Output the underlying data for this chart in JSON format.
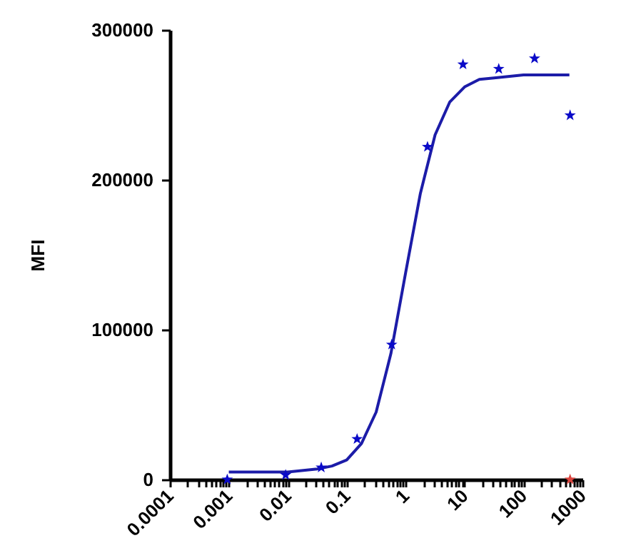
{
  "chart_data": {
    "type": "scatter",
    "ylabel": "MFI",
    "log": "x",
    "grid": false,
    "xlim": [
      0.0001,
      1000
    ],
    "ylim": [
      0,
      300000
    ],
    "yticks": [
      0,
      100000,
      200000,
      300000
    ],
    "xticks": [
      0.0001,
      {
        "value": 0.0002,
        "label": null
      },
      {
        "value": 0.0003,
        "label": null
      },
      {
        "value": 0.0004,
        "label": null
      },
      {
        "value": 0.0005,
        "label": null
      },
      {
        "value": 0.0006,
        "label": null
      },
      {
        "value": 0.0007,
        "label": null
      },
      {
        "value": 0.0008,
        "label": null
      },
      {
        "value": 0.0009,
        "label": null
      },
      0.001,
      {
        "value": 0.002,
        "label": null
      },
      {
        "value": 0.003,
        "label": null
      },
      {
        "value": 0.004,
        "label": null
      },
      {
        "value": 0.005,
        "label": null
      },
      {
        "value": 0.006,
        "label": null
      },
      {
        "value": 0.007,
        "label": null
      },
      {
        "value": 0.008,
        "label": null
      },
      {
        "value": 0.009,
        "label": null
      },
      0.01,
      {
        "value": 0.02,
        "label": null
      },
      {
        "value": 0.03,
        "label": null
      },
      {
        "value": 0.04,
        "label": null
      },
      {
        "value": 0.05,
        "label": null
      },
      {
        "value": 0.06,
        "label": null
      },
      {
        "value": 0.07,
        "label": null
      },
      {
        "value": 0.08,
        "label": null
      },
      {
        "value": 0.09,
        "label": null
      },
      0.1,
      {
        "value": 0.2,
        "label": null
      },
      {
        "value": 0.3,
        "label": null
      },
      {
        "value": 0.4,
        "label": null
      },
      {
        "value": 0.5,
        "label": null
      },
      {
        "value": 0.6,
        "label": null
      },
      {
        "value": 0.7,
        "label": null
      },
      {
        "value": 0.8,
        "label": null
      },
      {
        "value": 0.9,
        "label": null
      },
      1,
      {
        "value": 2,
        "label": null
      },
      {
        "value": 3,
        "label": null
      },
      {
        "value": 4,
        "label": null
      },
      {
        "value": 5,
        "label": null
      },
      {
        "value": 6,
        "label": null
      },
      {
        "value": 7,
        "label": null
      },
      {
        "value": 8,
        "label": null
      },
      {
        "value": 9,
        "label": null
      },
      10,
      {
        "value": 20,
        "label": null
      },
      {
        "value": 30,
        "label": null
      },
      {
        "value": 40,
        "label": null
      },
      {
        "value": 50,
        "label": null
      },
      {
        "value": 60,
        "label": null
      },
      {
        "value": 70,
        "label": null
      },
      {
        "value": 80,
        "label": null
      },
      {
        "value": 90,
        "label": null
      },
      100,
      {
        "value": 200,
        "label": null
      },
      {
        "value": 300,
        "label": null
      },
      {
        "value": 400,
        "label": null
      },
      {
        "value": 500,
        "label": null
      },
      {
        "value": 600,
        "label": null
      },
      {
        "value": 700,
        "label": null
      },
      {
        "value": 800,
        "label": null
      },
      {
        "value": 900,
        "label": null
      },
      1000
    ],
    "series": [
      {
        "type": "line",
        "color": "#1c1ca8",
        "line_style": "solid",
        "marker": "none",
        "x": [
          0.001,
          0.01,
          0.0316,
          0.0562,
          0.1,
          0.178,
          0.316,
          0.562,
          1,
          1.78,
          3.16,
          5.62,
          10,
          17.8,
          31.6,
          100,
          600
        ],
        "values": [
          5000,
          5000,
          7000,
          9000,
          13000,
          24000,
          45000,
          84000,
          138000,
          191000,
          230000,
          252000,
          262000,
          267000,
          268000,
          270000,
          270000
        ]
      },
      {
        "color": "#0a0ac8",
        "marker": "star",
        "x": [
          0.00094,
          0.0092,
          0.037,
          0.15,
          0.58,
          2.35,
          9.4,
          38,
          154,
          617
        ],
        "values": [
          0,
          3000,
          8000,
          27000,
          90000,
          222000,
          277000,
          274000,
          281000,
          243000
        ]
      },
      {
        "color": "#d9453f",
        "marker": "star",
        "x": [
          617
        ],
        "values": [
          0
        ]
      }
    ]
  }
}
